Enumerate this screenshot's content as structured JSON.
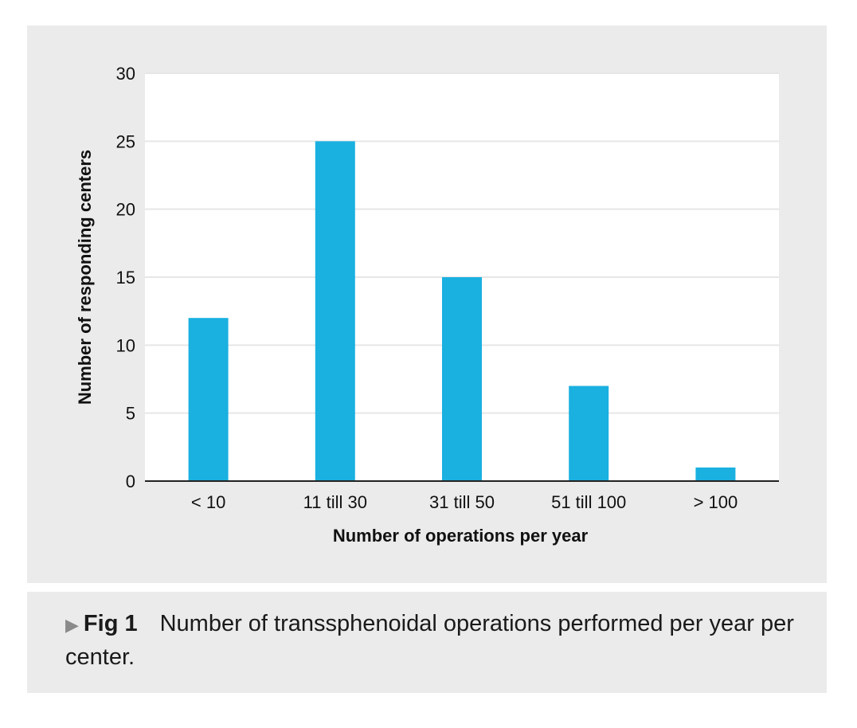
{
  "chart_data": {
    "type": "bar",
    "title": "",
    "categories": [
      "< 10",
      "11 till 30",
      "31 till 50",
      "51 till 100",
      "> 100"
    ],
    "values": [
      12,
      25,
      15,
      7,
      1
    ],
    "xlabel": "Number of operations per year",
    "ylabel": "Number of responding centers",
    "ylim": [
      0,
      30
    ],
    "yticks": [
      0,
      5,
      10,
      15,
      20,
      25,
      30
    ],
    "grid": true,
    "legend": "none",
    "bar_color": "#1ab0e0"
  },
  "caption": {
    "marker": "▶",
    "label": "Fig 1",
    "text": "Number of transsphenoidal operations performed per year per center."
  },
  "colors": {
    "panel_bg": "#ebebeb",
    "plot_bg": "#ffffff",
    "grid": "#e6e6e6",
    "axis": "#222222"
  }
}
